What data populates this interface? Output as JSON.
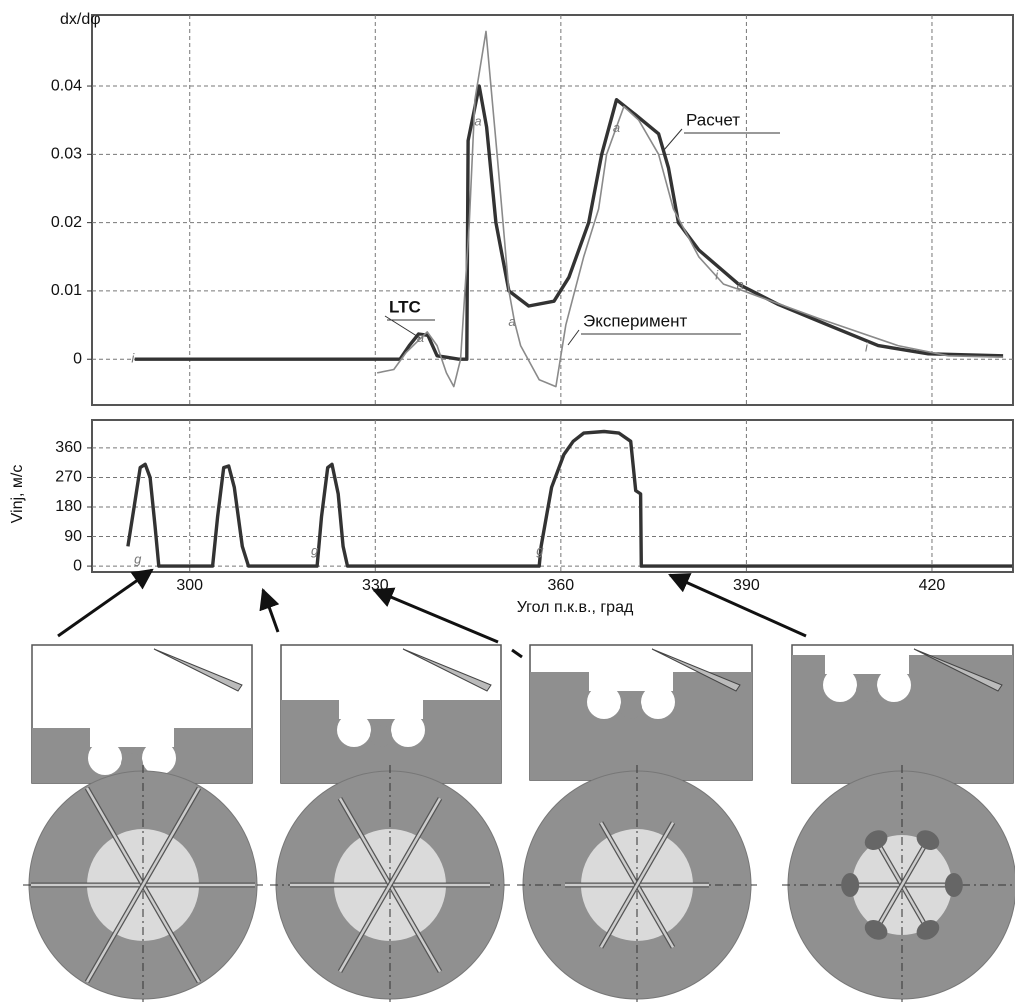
{
  "chart_data": [
    {
      "type": "line",
      "ylabel": "dx/dφ",
      "region_label": "LTC",
      "xlim": [
        284.2,
        433.1
      ],
      "ylim": [
        -0.0067,
        0.0504
      ],
      "xticks": [
        300,
        330,
        360,
        390,
        420
      ],
      "yticks": [
        0,
        0.01,
        0.02,
        0.03,
        0.04
      ],
      "grid": true,
      "series": [
        {
          "name": "Расчет",
          "color": "#333333",
          "x": [
            291.1,
            334,
            335.5,
            337,
            338.5,
            340,
            341.5,
            343.5,
            344.8,
            345,
            346.8,
            348,
            349.5,
            351.6,
            354.8,
            358.9,
            361.3,
            364.5,
            366.6,
            369,
            371.8,
            375.8,
            377.4,
            379,
            382.3,
            388.7,
            395.2,
            403.2,
            411.3,
            419.4,
            431.5
          ],
          "values": [
            0,
            0,
            0.002,
            0.0037,
            0.0035,
            0.0005,
            0.0003,
            0,
            0,
            0.032,
            0.04,
            0.034,
            0.02,
            0.01,
            0.0078,
            0.0085,
            0.012,
            0.02,
            0.03,
            0.038,
            0.036,
            0.033,
            0.028,
            0.02,
            0.016,
            0.011,
            0.008,
            0.005,
            0.002,
            0.0008,
            0.0005
          ]
        },
        {
          "name": "Эксперимент",
          "color": "#8a8a8a",
          "x": [
            330.3,
            333,
            335,
            338.4,
            340,
            341.5,
            342.7,
            343.8,
            345.2,
            346.1,
            347.9,
            349.7,
            351.6,
            352.5,
            353.5,
            356.5,
            359.2,
            360.8,
            363.7,
            366.1,
            367.4,
            370.2,
            372.6,
            375.8,
            378.2,
            382.3,
            386.3,
            389.5,
            401.6,
            414.5,
            422.6,
            431.5
          ],
          "values": [
            -0.002,
            -0.0015,
            0.001,
            0.004,
            0.002,
            -0.002,
            -0.004,
            0,
            0.02,
            0.038,
            0.048,
            0.03,
            0.01,
            0.0055,
            0.002,
            -0.003,
            -0.004,
            0.005,
            0.015,
            0.022,
            0.03,
            0.037,
            0.035,
            0.03,
            0.022,
            0.015,
            0.011,
            0.01,
            0.006,
            0.002,
            0.0005,
            0.0003
          ]
        }
      ],
      "annotations": [
        {
          "text": "i",
          "x": 290.8,
          "y": 0
        },
        {
          "text": "a",
          "x": 337.3,
          "y": 0.003
        },
        {
          "text": "a",
          "x": 346.6,
          "y": 0.0347
        },
        {
          "text": "a",
          "x": 352.1,
          "y": 0.0054
        },
        {
          "text": "a",
          "x": 369,
          "y": 0.0338
        },
        {
          "text": "i",
          "x": 385.2,
          "y": 0.0122
        },
        {
          "text": "a",
          "x": 389,
          "y": 0.0108
        },
        {
          "text": "i",
          "x": 409.4,
          "y": 0.0016
        }
      ]
    },
    {
      "type": "line",
      "ylabel": "Vinj, м/с",
      "xlabel": "Угол п.к.в., град",
      "color": "#333333",
      "xlim": [
        284.2,
        433.1
      ],
      "ylim": [
        -18,
        445
      ],
      "xticks": [
        300,
        330,
        360,
        390,
        420
      ],
      "yticks": [
        0,
        90,
        180,
        270,
        360
      ],
      "grid": true,
      "x": [
        290,
        291,
        292,
        292.8,
        293.6,
        294.4,
        295,
        303.7,
        304.5,
        305.5,
        306.3,
        307.2,
        308.5,
        309.5,
        320.6,
        321.3,
        322.3,
        323,
        324,
        324.8,
        325.5,
        356.5,
        356.8,
        358.5,
        360.5,
        362,
        363.7,
        367,
        369.4,
        371.3,
        372.1,
        372.9,
        373,
        433
      ],
      "values": [
        60,
        180,
        300,
        310,
        270,
        120,
        0,
        0,
        150,
        300,
        305,
        240,
        60,
        0,
        0,
        150,
        300,
        310,
        220,
        60,
        0,
        0,
        60,
        240,
        340,
        380,
        405,
        410,
        405,
        380,
        230,
        220,
        0,
        0
      ],
      "annotations": [
        {
          "text": "g",
          "x": 291.6,
          "y": 18
        },
        {
          "text": "g",
          "x": 320.2,
          "y": 45
        },
        {
          "text": "g",
          "x": 356.6,
          "y": 45
        }
      ]
    }
  ]
}
